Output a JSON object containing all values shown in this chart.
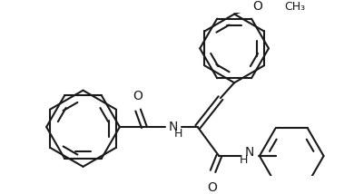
{
  "background": "#ffffff",
  "line_color": "#1a1a1a",
  "line_width": 1.5,
  "font_size": 9,
  "figsize": [
    3.9,
    2.14
  ],
  "dpi": 100,
  "xlim": [
    0,
    390
  ],
  "ylim": [
    0,
    214
  ]
}
